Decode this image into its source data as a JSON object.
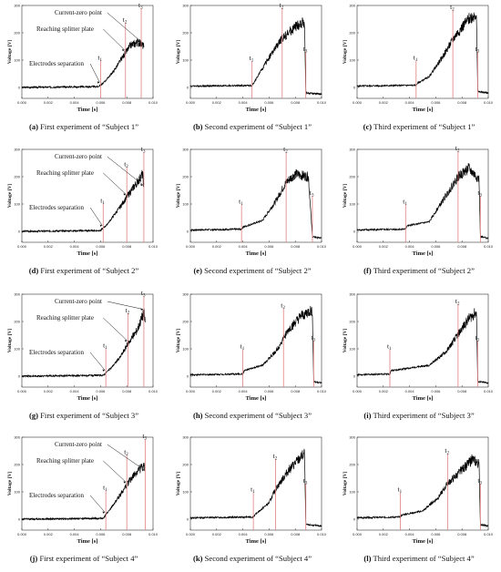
{
  "figure": {
    "panels": [
      {
        "letter": "(a)",
        "caption": "First experiment of “Subject 1”"
      },
      {
        "letter": "(b)",
        "caption": "Second experiment of “Subject 1”"
      },
      {
        "letter": "(c)",
        "caption": "Third experiment of “Subject 1”"
      },
      {
        "letter": "(d)",
        "caption": "First experiment of “Subject 2”"
      },
      {
        "letter": "(e)",
        "caption": "Second experiment of “Subject 2”"
      },
      {
        "letter": "(f)",
        "caption": "Third experiment of “Subject 2”"
      },
      {
        "letter": "(g)",
        "caption": "First experiment of “Subject 3”"
      },
      {
        "letter": "(h)",
        "caption": "Second experiment of “Subject 3”"
      },
      {
        "letter": "(i)",
        "caption": "Third experiment of “Subject 3”"
      },
      {
        "letter": "(j)",
        "caption": "First experiment of “Subject 4”"
      },
      {
        "letter": "(k)",
        "caption": "Second experiment of “Subject 4”"
      },
      {
        "letter": "(l)",
        "caption": "Third experiment of “Subject 4”"
      }
    ]
  },
  "colors": {
    "trace": "#000000",
    "marker": "#e08080",
    "axis": "#333333"
  },
  "chart_data": [
    {
      "type": "line",
      "xlabel": "Time [s]",
      "ylabel": "Voltage [V]",
      "xlim": [
        0.0,
        0.01
      ],
      "ylim": [
        -40,
        300
      ],
      "xticks": [
        "0.000",
        "0.002",
        "0.004",
        "0.006",
        "0.008",
        "0.010"
      ],
      "yticks": [
        "0",
        "100",
        "200",
        "300"
      ],
      "markers": [
        {
          "label": "t1",
          "x": 0.006
        },
        {
          "label": "t2",
          "x": 0.0079
        },
        {
          "label": "t3",
          "x": 0.0091
        }
      ],
      "annotations": [
        {
          "text": "Electrodes separation",
          "marker": "t1"
        },
        {
          "text": "Reaching splitter plate",
          "marker": "t2"
        },
        {
          "text": "Current-zero point",
          "marker": "t3"
        }
      ],
      "points": [
        [
          0.0,
          0
        ],
        [
          0.0058,
          3
        ],
        [
          0.0062,
          15
        ],
        [
          0.007,
          60
        ],
        [
          0.0078,
          120
        ],
        [
          0.0083,
          155
        ],
        [
          0.0088,
          165
        ],
        [
          0.0091,
          160
        ],
        [
          0.0093,
          150
        ]
      ]
    },
    {
      "type": "line",
      "xlabel": "Time [s]",
      "ylabel": "Voltage [V]",
      "xlim": [
        0.0,
        0.01
      ],
      "ylim": [
        -40,
        300
      ],
      "xticks": [
        "0.000",
        "0.002",
        "0.004",
        "0.006",
        "0.008",
        "0.010"
      ],
      "yticks": [
        "0",
        "100",
        "200",
        "300"
      ],
      "markers": [
        {
          "label": "t1",
          "x": 0.0047
        },
        {
          "label": "t2",
          "x": 0.007
        },
        {
          "label": "t3",
          "x": 0.0088
        }
      ],
      "points": [
        [
          0.0,
          5
        ],
        [
          0.0047,
          7
        ],
        [
          0.005,
          30
        ],
        [
          0.006,
          110
        ],
        [
          0.007,
          180
        ],
        [
          0.008,
          220
        ],
        [
          0.0087,
          240
        ],
        [
          0.0088,
          -20
        ],
        [
          0.01,
          -25
        ]
      ]
    },
    {
      "type": "line",
      "xlabel": "Time [s]",
      "ylabel": "Voltage [V]",
      "xlim": [
        0.0,
        0.01
      ],
      "ylim": [
        -40,
        300
      ],
      "xticks": [
        "0.000",
        "0.002",
        "0.004",
        "0.006",
        "0.008",
        "0.010"
      ],
      "yticks": [
        "0",
        "100",
        "200",
        "300"
      ],
      "markers": [
        {
          "label": "t1",
          "x": 0.0045
        },
        {
          "label": "t2",
          "x": 0.0073
        },
        {
          "label": "t3",
          "x": 0.0092
        }
      ],
      "points": [
        [
          0.0,
          5
        ],
        [
          0.0045,
          8
        ],
        [
          0.0046,
          15
        ],
        [
          0.0055,
          40
        ],
        [
          0.0065,
          110
        ],
        [
          0.0075,
          190
        ],
        [
          0.0085,
          250
        ],
        [
          0.0091,
          270
        ],
        [
          0.0092,
          -15
        ],
        [
          0.01,
          -20
        ]
      ]
    },
    {
      "type": "line",
      "xlabel": "Time [s]",
      "ylabel": "Voltage [V]",
      "xlim": [
        0.0,
        0.01
      ],
      "ylim": [
        -40,
        300
      ],
      "xticks": [
        "0.000",
        "0.002",
        "0.004",
        "0.006",
        "0.008",
        "0.010"
      ],
      "yticks": [
        "0",
        "100",
        "200",
        "300"
      ],
      "markers": [
        {
          "label": "t1",
          "x": 0.0062
        },
        {
          "label": "t2",
          "x": 0.008
        },
        {
          "label": "t3",
          "x": 0.0093
        }
      ],
      "annotations": [
        {
          "text": "Electrodes separation",
          "marker": "t1"
        },
        {
          "text": "Reaching splitter plate",
          "marker": "t2"
        },
        {
          "text": "Current-zero point",
          "marker": "t3"
        }
      ],
      "points": [
        [
          0.0,
          0
        ],
        [
          0.006,
          3
        ],
        [
          0.0065,
          25
        ],
        [
          0.0075,
          90
        ],
        [
          0.0082,
          140
        ],
        [
          0.0088,
          180
        ],
        [
          0.0092,
          210
        ],
        [
          0.0093,
          160
        ]
      ]
    },
    {
      "type": "line",
      "xlabel": "Time [s]",
      "ylabel": "Voltage [V]",
      "xlim": [
        0.0,
        0.01
      ],
      "ylim": [
        -40,
        300
      ],
      "xticks": [
        "0.000",
        "0.002",
        "0.004",
        "0.006",
        "0.008",
        "0.010"
      ],
      "yticks": [
        "0",
        "100",
        "200",
        "300"
      ],
      "markers": [
        {
          "label": "t1",
          "x": 0.0039
        },
        {
          "label": "t2",
          "x": 0.0073
        },
        {
          "label": "t3",
          "x": 0.0093
        }
      ],
      "points": [
        [
          0.0,
          5
        ],
        [
          0.0039,
          8
        ],
        [
          0.004,
          15
        ],
        [
          0.0055,
          40
        ],
        [
          0.0065,
          110
        ],
        [
          0.0073,
          180
        ],
        [
          0.008,
          210
        ],
        [
          0.009,
          200
        ],
        [
          0.0093,
          -20
        ],
        [
          0.01,
          -25
        ]
      ]
    },
    {
      "type": "line",
      "xlabel": "Time [s]",
      "ylabel": "Voltage [V]",
      "xlim": [
        0.0,
        0.01
      ],
      "ylim": [
        -40,
        300
      ],
      "xticks": [
        "0.000",
        "0.002",
        "0.004",
        "0.006",
        "0.008",
        "0.010"
      ],
      "yticks": [
        "0",
        "100",
        "200",
        "300"
      ],
      "markers": [
        {
          "label": "t1",
          "x": 0.0037
        },
        {
          "label": "t2",
          "x": 0.0077
        },
        {
          "label": "t3",
          "x": 0.0094
        }
      ],
      "points": [
        [
          0.0,
          5
        ],
        [
          0.0037,
          8
        ],
        [
          0.0038,
          20
        ],
        [
          0.0055,
          35
        ],
        [
          0.0065,
          110
        ],
        [
          0.0077,
          200
        ],
        [
          0.0085,
          230
        ],
        [
          0.0093,
          190
        ],
        [
          0.0094,
          -20
        ],
        [
          0.01,
          -25
        ]
      ]
    },
    {
      "type": "line",
      "xlabel": "Time [s]",
      "ylabel": "Voltage [V]",
      "xlim": [
        0.0,
        0.01
      ],
      "ylim": [
        -40,
        300
      ],
      "xticks": [
        "0.000",
        "0.002",
        "0.004",
        "0.006",
        "0.008",
        "0.010"
      ],
      "yticks": [
        "0",
        "100",
        "200",
        "300"
      ],
      "markers": [
        {
          "label": "t1",
          "x": 0.0064
        },
        {
          "label": "t2",
          "x": 0.0081
        },
        {
          "label": "t3",
          "x": 0.0093
        }
      ],
      "annotations": [
        {
          "text": "Electrodes separation",
          "marker": "t1"
        },
        {
          "text": "Reaching splitter plate",
          "marker": "t2"
        },
        {
          "text": "Current-zero point",
          "marker": "t3"
        }
      ],
      "points": [
        [
          0.0,
          0
        ],
        [
          0.0062,
          3
        ],
        [
          0.0068,
          30
        ],
        [
          0.0075,
          70
        ],
        [
          0.0081,
          120
        ],
        [
          0.0088,
          170
        ],
        [
          0.0093,
          235
        ],
        [
          0.0094,
          200
        ]
      ]
    },
    {
      "type": "line",
      "xlabel": "Time [s]",
      "ylabel": "Voltage [V]",
      "xlim": [
        0.0,
        0.01
      ],
      "ylim": [
        -40,
        300
      ],
      "xticks": [
        "0.000",
        "0.002",
        "0.004",
        "0.006",
        "0.008",
        "0.010"
      ],
      "yticks": [
        "0",
        "100",
        "200",
        "300"
      ],
      "markers": [
        {
          "label": "t1",
          "x": 0.004
        },
        {
          "label": "t2",
          "x": 0.0071
        },
        {
          "label": "t3",
          "x": 0.0094
        }
      ],
      "points": [
        [
          0.0,
          5
        ],
        [
          0.004,
          8
        ],
        [
          0.0041,
          20
        ],
        [
          0.0055,
          40
        ],
        [
          0.0065,
          90
        ],
        [
          0.0075,
          170
        ],
        [
          0.0085,
          220
        ],
        [
          0.0093,
          240
        ],
        [
          0.0094,
          -20
        ],
        [
          0.01,
          -25
        ]
      ]
    },
    {
      "type": "line",
      "xlabel": "Time [s]",
      "ylabel": "Voltage [V]",
      "xlim": [
        0.0,
        0.01
      ],
      "ylim": [
        -40,
        300
      ],
      "xticks": [
        "0.000",
        "0.002",
        "0.004",
        "0.006",
        "0.008",
        "0.010"
      ],
      "yticks": [
        "0",
        "100",
        "200",
        "300"
      ],
      "markers": [
        {
          "label": "t1",
          "x": 0.0025
        },
        {
          "label": "t2",
          "x": 0.0077
        },
        {
          "label": "t3",
          "x": 0.0092
        }
      ],
      "points": [
        [
          0.0,
          5
        ],
        [
          0.0025,
          8
        ],
        [
          0.0026,
          20
        ],
        [
          0.0055,
          40
        ],
        [
          0.0068,
          90
        ],
        [
          0.0078,
          160
        ],
        [
          0.0085,
          210
        ],
        [
          0.0091,
          235
        ],
        [
          0.0092,
          -20
        ],
        [
          0.01,
          -25
        ]
      ]
    },
    {
      "type": "line",
      "xlabel": "Time [s]",
      "ylabel": "Voltage [V]",
      "xlim": [
        0.0,
        0.01
      ],
      "ylim": [
        -40,
        300
      ],
      "xticks": [
        "0.000",
        "0.002",
        "0.004",
        "0.006",
        "0.008",
        "0.010"
      ],
      "yticks": [
        "0",
        "100",
        "200",
        "300"
      ],
      "markers": [
        {
          "label": "t1",
          "x": 0.0064
        },
        {
          "label": "t2",
          "x": 0.008
        },
        {
          "label": "t3",
          "x": 0.0094
        }
      ],
      "annotations": [
        {
          "text": "Electrodes separation",
          "marker": "t1"
        },
        {
          "text": "Reaching splitter plate",
          "marker": "t2"
        },
        {
          "text": "Current-zero point",
          "marker": "t3"
        }
      ],
      "points": [
        [
          0.0,
          0
        ],
        [
          0.0062,
          3
        ],
        [
          0.0068,
          40
        ],
        [
          0.0075,
          90
        ],
        [
          0.0082,
          140
        ],
        [
          0.0089,
          180
        ],
        [
          0.0093,
          195
        ],
        [
          0.0094,
          170
        ]
      ]
    },
    {
      "type": "line",
      "xlabel": "Time [s]",
      "ylabel": "Voltage [V]",
      "xlim": [
        0.0,
        0.01
      ],
      "ylim": [
        -40,
        300
      ],
      "xticks": [
        "0.000",
        "0.002",
        "0.004",
        "0.006",
        "0.008",
        "0.010"
      ],
      "yticks": [
        "0",
        "100",
        "200",
        "300"
      ],
      "markers": [
        {
          "label": "t1",
          "x": 0.0048
        },
        {
          "label": "t2",
          "x": 0.0065
        },
        {
          "label": "t3",
          "x": 0.0088
        }
      ],
      "points": [
        [
          0.0,
          5
        ],
        [
          0.0048,
          8
        ],
        [
          0.0049,
          15
        ],
        [
          0.006,
          60
        ],
        [
          0.0065,
          110
        ],
        [
          0.0075,
          180
        ],
        [
          0.0083,
          220
        ],
        [
          0.0087,
          240
        ],
        [
          0.0088,
          -20
        ],
        [
          0.01,
          -25
        ]
      ]
    },
    {
      "type": "line",
      "xlabel": "Time [s]",
      "ylabel": "Voltage [V]",
      "xlim": [
        0.0,
        0.01
      ],
      "ylim": [
        -40,
        300
      ],
      "xticks": [
        "0.000",
        "0.002",
        "0.004",
        "0.006",
        "0.008",
        "0.010"
      ],
      "yticks": [
        "0",
        "100",
        "200",
        "300"
      ],
      "markers": [
        {
          "label": "t1",
          "x": 0.0033
        },
        {
          "label": "t2",
          "x": 0.0069
        },
        {
          "label": "t3",
          "x": 0.0094
        }
      ],
      "points": [
        [
          0.0,
          5
        ],
        [
          0.0033,
          8
        ],
        [
          0.0034,
          15
        ],
        [
          0.005,
          30
        ],
        [
          0.0062,
          80
        ],
        [
          0.0069,
          130
        ],
        [
          0.008,
          180
        ],
        [
          0.0088,
          220
        ],
        [
          0.0093,
          200
        ],
        [
          0.0094,
          -20
        ],
        [
          0.01,
          -25
        ]
      ]
    }
  ]
}
